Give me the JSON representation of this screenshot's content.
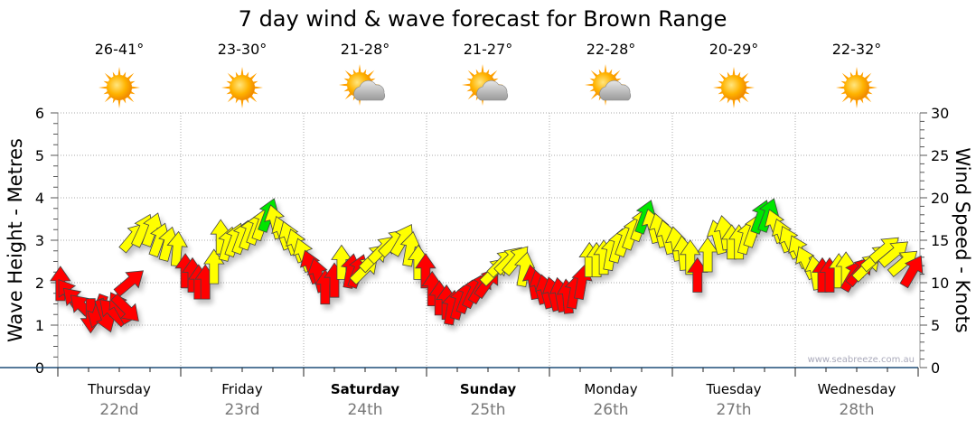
{
  "chart_data": {
    "type": "scatter",
    "title": "7 day wind & wave forecast for Brown Range",
    "ylabel": "Wave Height - Metres",
    "y2label": "Wind Speed - Knots",
    "ylim": [
      0,
      6
    ],
    "y2lim": [
      0,
      30
    ],
    "yticks": [
      "0",
      "1",
      "2",
      "3",
      "4",
      "5",
      "6"
    ],
    "y2ticks": [
      "0",
      "5",
      "10",
      "15",
      "20",
      "25",
      "30"
    ],
    "grid": true,
    "watermark": "www.seabreeze.com.au",
    "days": [
      {
        "name": "Thursday",
        "date": "22nd",
        "temp": "26-41°",
        "icon": "sunny",
        "bold": false
      },
      {
        "name": "Friday",
        "date": "23rd",
        "temp": "23-30°",
        "icon": "sunny",
        "bold": false
      },
      {
        "name": "Saturday",
        "date": "24th",
        "temp": "21-28°",
        "icon": "partly-cloudy",
        "bold": true
      },
      {
        "name": "Sunday",
        "date": "25th",
        "temp": "21-27°",
        "icon": "partly-cloudy",
        "bold": true
      },
      {
        "name": "Monday",
        "date": "26th",
        "temp": "22-28°",
        "icon": "partly-cloudy",
        "bold": false
      },
      {
        "name": "Tuesday",
        "date": "27th",
        "temp": "20-29°",
        "icon": "sunny",
        "bold": false
      },
      {
        "name": "Wednesday",
        "date": "28th",
        "temp": "22-32°",
        "icon": "sunny",
        "bold": false
      }
    ],
    "colors": {
      "r": "#ff0000",
      "y": "#ffff00",
      "g": "#00e600"
    },
    "wind_series_fields": [
      "hour_from_start",
      "knots",
      "direction_deg_arrow_points",
      "color"
    ],
    "wind": [
      [
        0.5,
        9.9,
        0,
        "r"
      ],
      [
        2.1,
        8.7,
        -35,
        "r"
      ],
      [
        3.5,
        7.9,
        -45,
        "r"
      ],
      [
        4.9,
        7.1,
        -45,
        "r"
      ],
      [
        6.4,
        6.1,
        180,
        "r"
      ],
      [
        7.8,
        6.6,
        200,
        "r"
      ],
      [
        9.2,
        6.1,
        160,
        "r"
      ],
      [
        10.6,
        6.6,
        -45,
        "r"
      ],
      [
        12,
        7.1,
        -30,
        "r"
      ],
      [
        13.4,
        6.9,
        135,
        "r"
      ],
      [
        14.1,
        10.1,
        50,
        "r"
      ],
      [
        14.8,
        15.4,
        40,
        "y"
      ],
      [
        16.6,
        16.2,
        25,
        "y"
      ],
      [
        18.4,
        16.3,
        20,
        "y"
      ],
      [
        19.8,
        15.1,
        20,
        "y"
      ],
      [
        21.5,
        14.6,
        15,
        "y"
      ],
      [
        23.3,
        14,
        5,
        "y"
      ],
      [
        24.9,
        11.4,
        0,
        "r"
      ],
      [
        26.3,
        10.9,
        0,
        "r"
      ],
      [
        27.5,
        10.1,
        0,
        "r"
      ],
      [
        28.8,
        10.1,
        0,
        "r"
      ],
      [
        30.5,
        11.9,
        0,
        "y"
      ],
      [
        31.8,
        15.4,
        0,
        "y"
      ],
      [
        33.2,
        14.6,
        15,
        "y"
      ],
      [
        34.6,
        15.1,
        20,
        "y"
      ],
      [
        36,
        15.4,
        20,
        "y"
      ],
      [
        37.4,
        15.9,
        20,
        "y"
      ],
      [
        38.8,
        16.5,
        20,
        "y"
      ],
      [
        39.9,
        17,
        20,
        "y"
      ],
      [
        41.1,
        18,
        20,
        "g"
      ],
      [
        42.4,
        17.2,
        -15,
        "y"
      ],
      [
        43.8,
        15.9,
        -20,
        "y"
      ],
      [
        45.2,
        15.3,
        -20,
        "y"
      ],
      [
        46.6,
        14.4,
        -20,
        "y"
      ],
      [
        48,
        13.3,
        -20,
        "y"
      ],
      [
        49.4,
        11.9,
        -20,
        "r"
      ],
      [
        50.8,
        10.9,
        -15,
        "r"
      ],
      [
        52.2,
        9.5,
        0,
        "r"
      ],
      [
        54,
        10.3,
        0,
        "r"
      ],
      [
        55.4,
        12.4,
        0,
        "y"
      ],
      [
        57.2,
        11.4,
        10,
        "r"
      ],
      [
        58.6,
        11.4,
        20,
        "r"
      ],
      [
        60,
        11.6,
        45,
        "y"
      ],
      [
        61.8,
        13,
        45,
        "y"
      ],
      [
        63.5,
        14,
        45,
        "y"
      ],
      [
        65.6,
        14.8,
        45,
        "y"
      ],
      [
        67.4,
        15.1,
        30,
        "y"
      ],
      [
        68.8,
        14,
        10,
        "y"
      ],
      [
        70.4,
        12.4,
        0,
        "y"
      ],
      [
        71.8,
        11.4,
        0,
        "r"
      ],
      [
        73.1,
        9.3,
        0,
        "r"
      ],
      [
        74.5,
        8.2,
        0,
        "r"
      ],
      [
        75.9,
        7.7,
        0,
        "r"
      ],
      [
        76.9,
        7.1,
        10,
        "r"
      ],
      [
        78.4,
        7.7,
        15,
        "r"
      ],
      [
        79.8,
        8.4,
        20,
        "r"
      ],
      [
        81.2,
        9,
        25,
        "r"
      ],
      [
        82.6,
        9.5,
        30,
        "r"
      ],
      [
        84,
        10.1,
        35,
        "r"
      ],
      [
        85.4,
        11.4,
        45,
        "y"
      ],
      [
        86.8,
        12.4,
        45,
        "y"
      ],
      [
        88.2,
        12.7,
        45,
        "y"
      ],
      [
        89.6,
        12.7,
        40,
        "y"
      ],
      [
        91.1,
        11.6,
        10,
        "y"
      ],
      [
        92.8,
        10.1,
        -10,
        "r"
      ],
      [
        94.1,
        9.5,
        -15,
        "r"
      ],
      [
        95.3,
        9,
        -15,
        "r"
      ],
      [
        96.7,
        8.7,
        -15,
        "r"
      ],
      [
        98.1,
        8.6,
        -10,
        "r"
      ],
      [
        99.5,
        8.4,
        -5,
        "r"
      ],
      [
        100.9,
        9,
        10,
        "r"
      ],
      [
        102.3,
        10.1,
        10,
        "r"
      ],
      [
        103.8,
        12.7,
        0,
        "y"
      ],
      [
        105.2,
        12.7,
        0,
        "y"
      ],
      [
        106.6,
        13,
        0,
        "y"
      ],
      [
        108,
        13.5,
        10,
        "y"
      ],
      [
        109.4,
        14.4,
        15,
        "y"
      ],
      [
        110.8,
        15.1,
        20,
        "y"
      ],
      [
        112.2,
        15.9,
        20,
        "y"
      ],
      [
        113.8,
        16.9,
        20,
        "y"
      ],
      [
        114.7,
        17.8,
        20,
        "g"
      ],
      [
        116.1,
        16.7,
        -15,
        "y"
      ],
      [
        117.5,
        16.2,
        -15,
        "y"
      ],
      [
        118.9,
        15.4,
        -15,
        "y"
      ],
      [
        120.7,
        14.6,
        -10,
        "y"
      ],
      [
        122.1,
        13.5,
        -5,
        "y"
      ],
      [
        123.5,
        13,
        0,
        "y"
      ],
      [
        124.9,
        10.9,
        0,
        "r"
      ],
      [
        126.9,
        13.3,
        0,
        "y"
      ],
      [
        128.8,
        15.4,
        -15,
        "y"
      ],
      [
        130.2,
        15.9,
        -10,
        "y"
      ],
      [
        131.6,
        14.8,
        0,
        "y"
      ],
      [
        133,
        14.8,
        0,
        "y"
      ],
      [
        134.5,
        15.4,
        15,
        "y"
      ],
      [
        135.9,
        16.2,
        20,
        "y"
      ],
      [
        137.3,
        17.8,
        20,
        "g"
      ],
      [
        138.7,
        18,
        20,
        "g"
      ],
      [
        140.1,
        16.7,
        -20,
        "y"
      ],
      [
        141.5,
        15.6,
        -20,
        "y"
      ],
      [
        142.9,
        14.8,
        -25,
        "y"
      ],
      [
        144.7,
        13.7,
        -25,
        "y"
      ],
      [
        146.1,
        12.4,
        -25,
        "y"
      ],
      [
        147.9,
        11.2,
        -10,
        "y"
      ],
      [
        149.3,
        10.9,
        0,
        "r"
      ],
      [
        150.7,
        10.9,
        0,
        "r"
      ],
      [
        152.5,
        11.4,
        0,
        "y"
      ],
      [
        153.9,
        11.6,
        0,
        "y"
      ],
      [
        155.3,
        10.9,
        30,
        "r"
      ],
      [
        156.7,
        11.4,
        40,
        "r"
      ],
      [
        158.1,
        11.9,
        45,
        "y"
      ],
      [
        159.9,
        13,
        50,
        "y"
      ],
      [
        161.6,
        14,
        50,
        "y"
      ],
      [
        163.4,
        13.5,
        50,
        "y"
      ],
      [
        165.2,
        12.4,
        50,
        "y"
      ],
      [
        166.9,
        11.4,
        30,
        "r"
      ]
    ]
  }
}
